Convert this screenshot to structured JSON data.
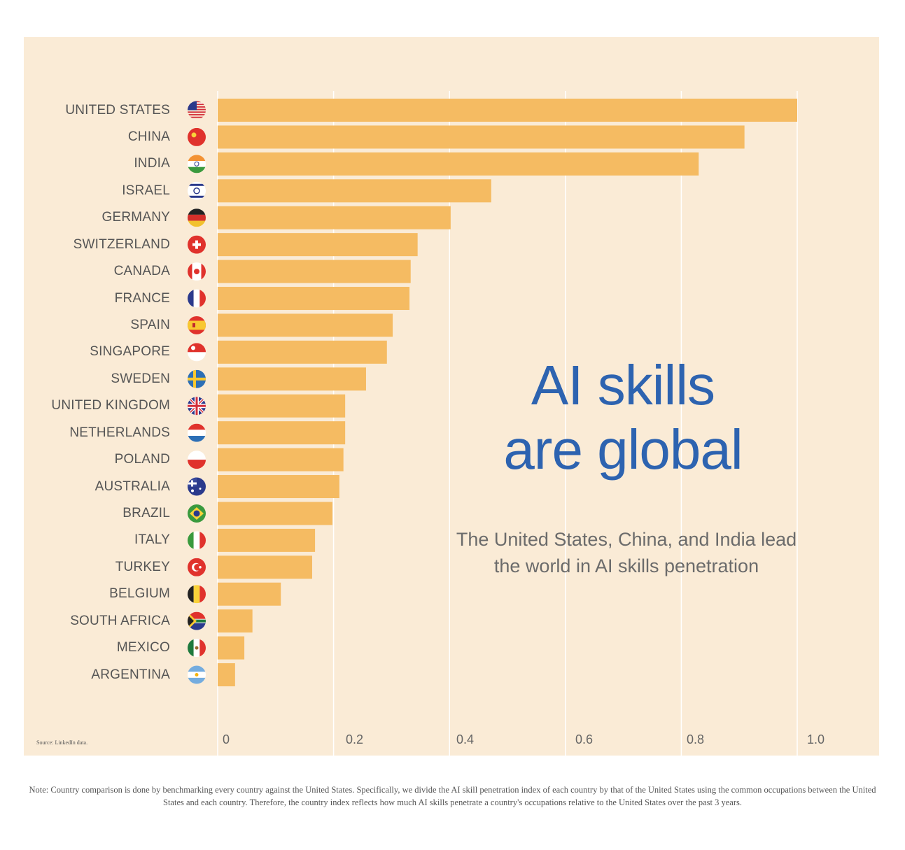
{
  "chart_data": {
    "type": "bar",
    "orientation": "horizontal",
    "title": "AI skills are global",
    "subtitle": "The United States, China, and India lead the world in AI skills penetration",
    "categories": [
      "UNITED STATES",
      "CHINA",
      "INDIA",
      "ISRAEL",
      "GERMANY",
      "SWITZERLAND",
      "CANADA",
      "FRANCE",
      "SPAIN",
      "SINGAPORE",
      "SWEDEN",
      "UNITED KINGDOM",
      "NETHERLANDS",
      "POLAND",
      "AUSTRALIA",
      "BRAZIL",
      "ITALY",
      "TURKEY",
      "BELGIUM",
      "SOUTH AFRICA",
      "MEXICO",
      "ARGENTINA"
    ],
    "values": [
      1.0,
      0.909,
      0.83,
      0.472,
      0.402,
      0.345,
      0.333,
      0.331,
      0.302,
      0.292,
      0.256,
      0.22,
      0.22,
      0.217,
      0.21,
      0.198,
      0.168,
      0.163,
      0.109,
      0.06,
      0.046,
      0.03
    ],
    "flag_icons": [
      "us-flag-icon",
      "china-flag-icon",
      "india-flag-icon",
      "israel-flag-icon",
      "germany-flag-icon",
      "switzerland-flag-icon",
      "canada-flag-icon",
      "france-flag-icon",
      "spain-flag-icon",
      "singapore-flag-icon",
      "sweden-flag-icon",
      "uk-flag-icon",
      "netherlands-flag-icon",
      "poland-flag-icon",
      "australia-flag-icon",
      "brazil-flag-icon",
      "italy-flag-icon",
      "turkey-flag-icon",
      "belgium-flag-icon",
      "south-africa-flag-icon",
      "mexico-flag-icon",
      "argentina-flag-icon"
    ],
    "xticks": [
      "0",
      "0.2",
      "0.4",
      "0.6",
      "0.8",
      "1.0"
    ],
    "xlim": [
      0,
      1.0
    ],
    "grid": true,
    "colors": {
      "bar": "#f5bb62",
      "background": "#faebd6",
      "title": "#2d63b0",
      "gridline": "#ffffff"
    }
  },
  "source": "Source: LinkedIn data.",
  "note": "Note:  Country comparison is done by benchmarking every country against the United States. Specifically, we divide the  AI skill penetration index of each country by that of the United States using the common occupations between the United States and each country. Therefore, the country index reflects how much AI skills penetrate a country's occupations relative to the United States over the past 3 years."
}
